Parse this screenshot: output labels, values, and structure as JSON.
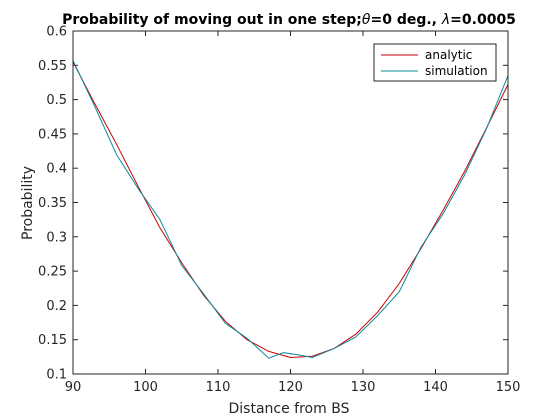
{
  "chart_data": {
    "type": "line",
    "title_prefix": "Probability of moving out in one step;",
    "title_theta": "θ",
    "title_middle": "=0 deg., ",
    "title_lambda": "λ",
    "title_suffix": "=0.0005",
    "xlabel": "Distance from BS",
    "ylabel": "Probability",
    "xlim": [
      90,
      150
    ],
    "ylim": [
      0.1,
      0.6
    ],
    "xticks": [
      90,
      100,
      110,
      120,
      130,
      140,
      150
    ],
    "yticks": [
      0.1,
      0.15,
      0.2,
      0.25,
      0.3,
      0.35,
      0.4,
      0.45,
      0.5,
      0.55,
      0.6
    ],
    "xtick_labels": [
      "90",
      "100",
      "110",
      "120",
      "130",
      "140",
      "150"
    ],
    "ytick_labels": [
      "0.1",
      "0.15",
      "0.2",
      "0.25",
      "0.3",
      "0.35",
      "0.4",
      "0.45",
      "0.5",
      "0.55",
      "0.6"
    ],
    "grid": false,
    "legend_position": "top-right",
    "series": [
      {
        "name": "analytic",
        "color": "#cc0000",
        "x": [
          90,
          93,
          96,
          99,
          102,
          105,
          108,
          111,
          114,
          117,
          120,
          123,
          126,
          129,
          132,
          135,
          138,
          141,
          144,
          147,
          150
        ],
        "y": [
          0.555,
          0.494,
          0.435,
          0.373,
          0.313,
          0.262,
          0.215,
          0.177,
          0.15,
          0.133,
          0.124,
          0.126,
          0.137,
          0.158,
          0.19,
          0.232,
          0.283,
          0.338,
          0.395,
          0.458,
          0.522
        ]
      },
      {
        "name": "simulation",
        "color": "#0e8a9e",
        "x": [
          90,
          93,
          96,
          99,
          102,
          105,
          108,
          111,
          114,
          117,
          119,
          121,
          123,
          126,
          129,
          132,
          135,
          138,
          141,
          144,
          147,
          150
        ],
        "y": [
          0.557,
          0.49,
          0.42,
          0.37,
          0.325,
          0.258,
          0.217,
          0.174,
          0.152,
          0.123,
          0.131,
          0.128,
          0.124,
          0.137,
          0.154,
          0.185,
          0.22,
          0.285,
          0.333,
          0.39,
          0.457,
          0.535
        ]
      }
    ]
  }
}
